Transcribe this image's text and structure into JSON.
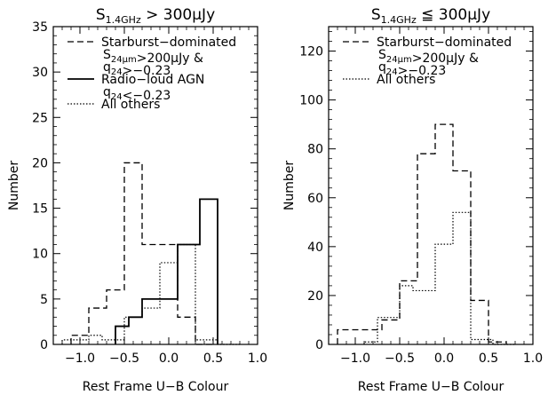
{
  "chart_data": [
    {
      "type": "histogram",
      "title_main": "S",
      "title_sub": "1.4GHz",
      "title_rest": " > 300μJy",
      "xlabel": "Rest Frame U−B Colour",
      "ylabel": "Number",
      "xlim": [
        -1.3,
        1.0
      ],
      "ylim": [
        0,
        35
      ],
      "xticks": [
        -1.0,
        -0.5,
        0.0,
        0.5,
        1.0
      ],
      "xtick_labels": [
        "−1.0",
        "−0.5",
        "0.0",
        "0.5",
        "1.0"
      ],
      "yticks": [
        0,
        5,
        10,
        15,
        20,
        25,
        30,
        35
      ],
      "legend": [
        {
          "style": "dashed",
          "lines": [
            "Starburst−dominated",
            "S24μm>200μJy &",
            "q24>−0.23"
          ]
        },
        {
          "style": "solid",
          "lines": [
            "Radio−loud AGN",
            "q24<−0.23"
          ]
        },
        {
          "style": "dotted",
          "lines": [
            "All others"
          ]
        }
      ],
      "series": [
        {
          "name": "Starburst-dominated",
          "style": "dashed",
          "edges": [
            -1.1,
            -0.9,
            -0.7,
            -0.5,
            -0.3,
            -0.1,
            0.1,
            0.3,
            0.5
          ],
          "values": [
            1,
            4,
            6,
            20,
            11,
            11,
            3,
            0
          ]
        },
        {
          "name": "Radio-loud AGN",
          "style": "solid",
          "edges": [
            -0.6,
            -0.45,
            -0.3,
            0.1,
            0.35,
            0.55
          ],
          "values": [
            2,
            3,
            5,
            11,
            16
          ]
        },
        {
          "name": "All others",
          "style": "dotted",
          "edges": [
            -1.2,
            -0.9,
            -0.75,
            -0.5,
            -0.3,
            -0.1,
            0.1,
            0.3,
            0.55,
            0.8
          ],
          "values": [
            0.5,
            1,
            0.5,
            3,
            4,
            9,
            11,
            0.5,
            0
          ]
        }
      ]
    },
    {
      "type": "histogram",
      "title_main": "S",
      "title_sub": "1.4GHz",
      "title_rest": " ≦ 300μJy",
      "xlabel": "Rest Frame U−B Colour",
      "ylabel": "Number",
      "xlim": [
        -1.3,
        1.0
      ],
      "ylim": [
        0,
        130
      ],
      "xticks": [
        -1.0,
        -0.5,
        0.0,
        0.5,
        1.0
      ],
      "xtick_labels": [
        "−1.0",
        "−0.5",
        "0.0",
        "0.5",
        "1.0"
      ],
      "yticks": [
        0,
        20,
        40,
        60,
        80,
        100,
        120
      ],
      "legend": [
        {
          "style": "dashed",
          "lines": [
            "Starburst−dominated",
            "S24μm>200μJy &",
            "q24>−0.23"
          ]
        },
        {
          "style": "dotted",
          "lines": [
            "All others"
          ]
        }
      ],
      "series": [
        {
          "name": "Starburst-dominated",
          "style": "dashed",
          "edges": [
            -1.2,
            -0.9,
            -0.7,
            -0.5,
            -0.3,
            -0.1,
            0.1,
            0.3,
            0.5,
            0.7
          ],
          "values": [
            6,
            6,
            10,
            26,
            78,
            90,
            71,
            18,
            1
          ]
        },
        {
          "name": "All others",
          "style": "dotted",
          "edges": [
            -0.9,
            -0.75,
            -0.5,
            -0.35,
            -0.1,
            0.1,
            0.3,
            0.55,
            0.8
          ],
          "values": [
            1,
            11,
            24,
            22,
            41,
            54,
            2,
            0
          ]
        }
      ]
    }
  ]
}
